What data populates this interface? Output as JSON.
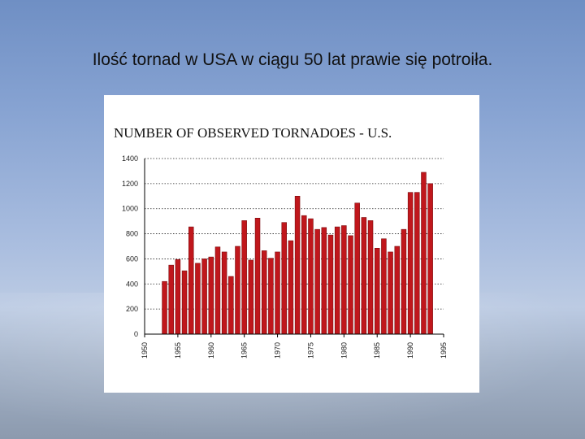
{
  "slide": {
    "title": "Ilość tornad w USA w ciągu 50 lat prawie się potroiła."
  },
  "colors": {
    "bar": "#c0171c",
    "bar_edge": "#7a0a0d",
    "grid": "#222222"
  },
  "chart_data": {
    "type": "bar",
    "title": "NUMBER OF OBSERVED TORNADOES  - U.S.",
    "xlabel": "",
    "ylabel": "",
    "ylim": [
      0,
      1400
    ],
    "xlim": [
      1950,
      1995
    ],
    "grid": "horizontal dotted",
    "legend": "none",
    "yticks": [
      "0",
      "200",
      "400",
      "600",
      "800",
      "1000",
      "1200",
      "1400"
    ],
    "xticks": [
      "1950",
      "1955",
      "1960",
      "1965",
      "1970",
      "1975",
      "1980",
      "1985",
      "1990",
      "1995"
    ],
    "categories": [
      1953,
      1954,
      1955,
      1956,
      1957,
      1958,
      1959,
      1960,
      1961,
      1962,
      1963,
      1964,
      1965,
      1966,
      1967,
      1968,
      1969,
      1970,
      1971,
      1972,
      1973,
      1974,
      1975,
      1976,
      1977,
      1978,
      1979,
      1980,
      1981,
      1982,
      1983,
      1984,
      1985,
      1986,
      1987,
      1988,
      1989,
      1990,
      1991,
      1992,
      1993
    ],
    "values": [
      420,
      550,
      595,
      505,
      855,
      565,
      600,
      615,
      695,
      655,
      460,
      700,
      905,
      590,
      925,
      665,
      605,
      655,
      890,
      745,
      1100,
      945,
      920,
      835,
      850,
      790,
      855,
      865,
      785,
      1045,
      930,
      905,
      685,
      760,
      655,
      700,
      835,
      1130,
      1130,
      1290,
      1200
    ]
  }
}
